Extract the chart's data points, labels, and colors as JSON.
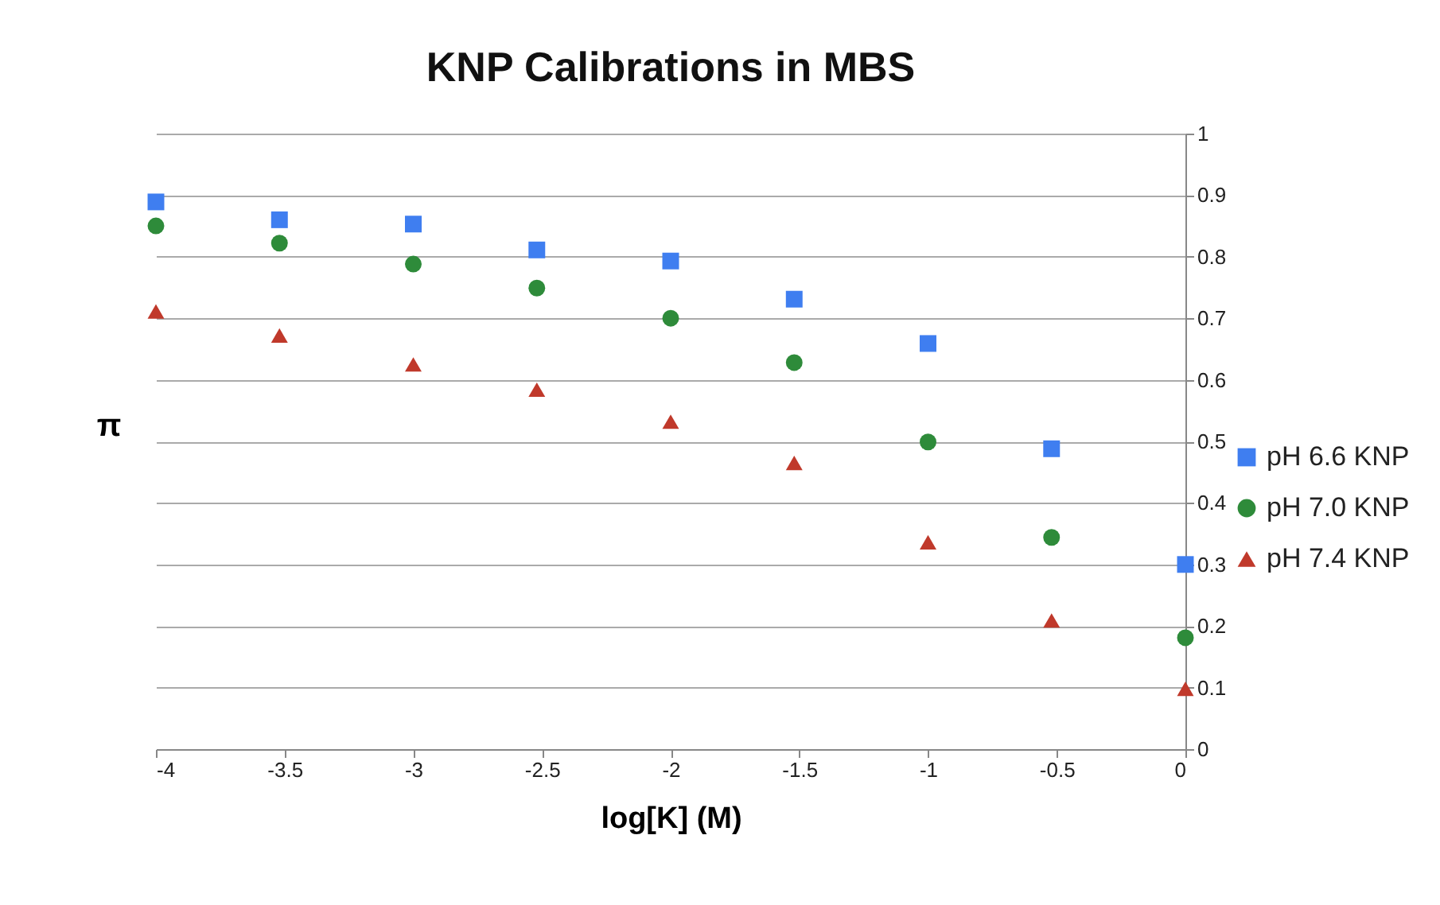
{
  "chart_data": {
    "type": "scatter",
    "title": "KNP Calibrations in MBS",
    "xlabel": "log[K] (M)",
    "ylabel": "π",
    "x": [
      -4,
      -3.52,
      -3,
      -2.52,
      -2,
      -1.52,
      -1,
      -0.52,
      0
    ],
    "series": [
      {
        "name": "pH 6.6 KNP",
        "color": "#3f7ef0",
        "marker": "square",
        "values": [
          0.889,
          0.86,
          0.853,
          0.811,
          0.793,
          0.731,
          0.659,
          0.488,
          0.3
        ]
      },
      {
        "name": "pH 7.0 KNP",
        "color": "#2e8b3a",
        "marker": "circle",
        "values": [
          0.85,
          0.822,
          0.788,
          0.749,
          0.7,
          0.628,
          0.499,
          0.344,
          0.181
        ]
      },
      {
        "name": "pH 7.4 KNP",
        "color": "#c0392b",
        "marker": "triangle",
        "values": [
          0.711,
          0.672,
          0.625,
          0.584,
          0.532,
          0.465,
          0.336,
          0.209,
          0.098
        ]
      }
    ],
    "xlim": [
      -4,
      0
    ],
    "xticks": [
      -4,
      -3.5,
      -3,
      -2.5,
      -2,
      -1.5,
      -1,
      -0.5,
      0
    ],
    "ylim": [
      0,
      1
    ],
    "yticks": [
      0,
      0.1,
      0.2,
      0.3,
      0.4,
      0.5,
      0.6,
      0.7,
      0.8,
      0.9,
      1
    ],
    "grid": "y",
    "legend": "right"
  }
}
